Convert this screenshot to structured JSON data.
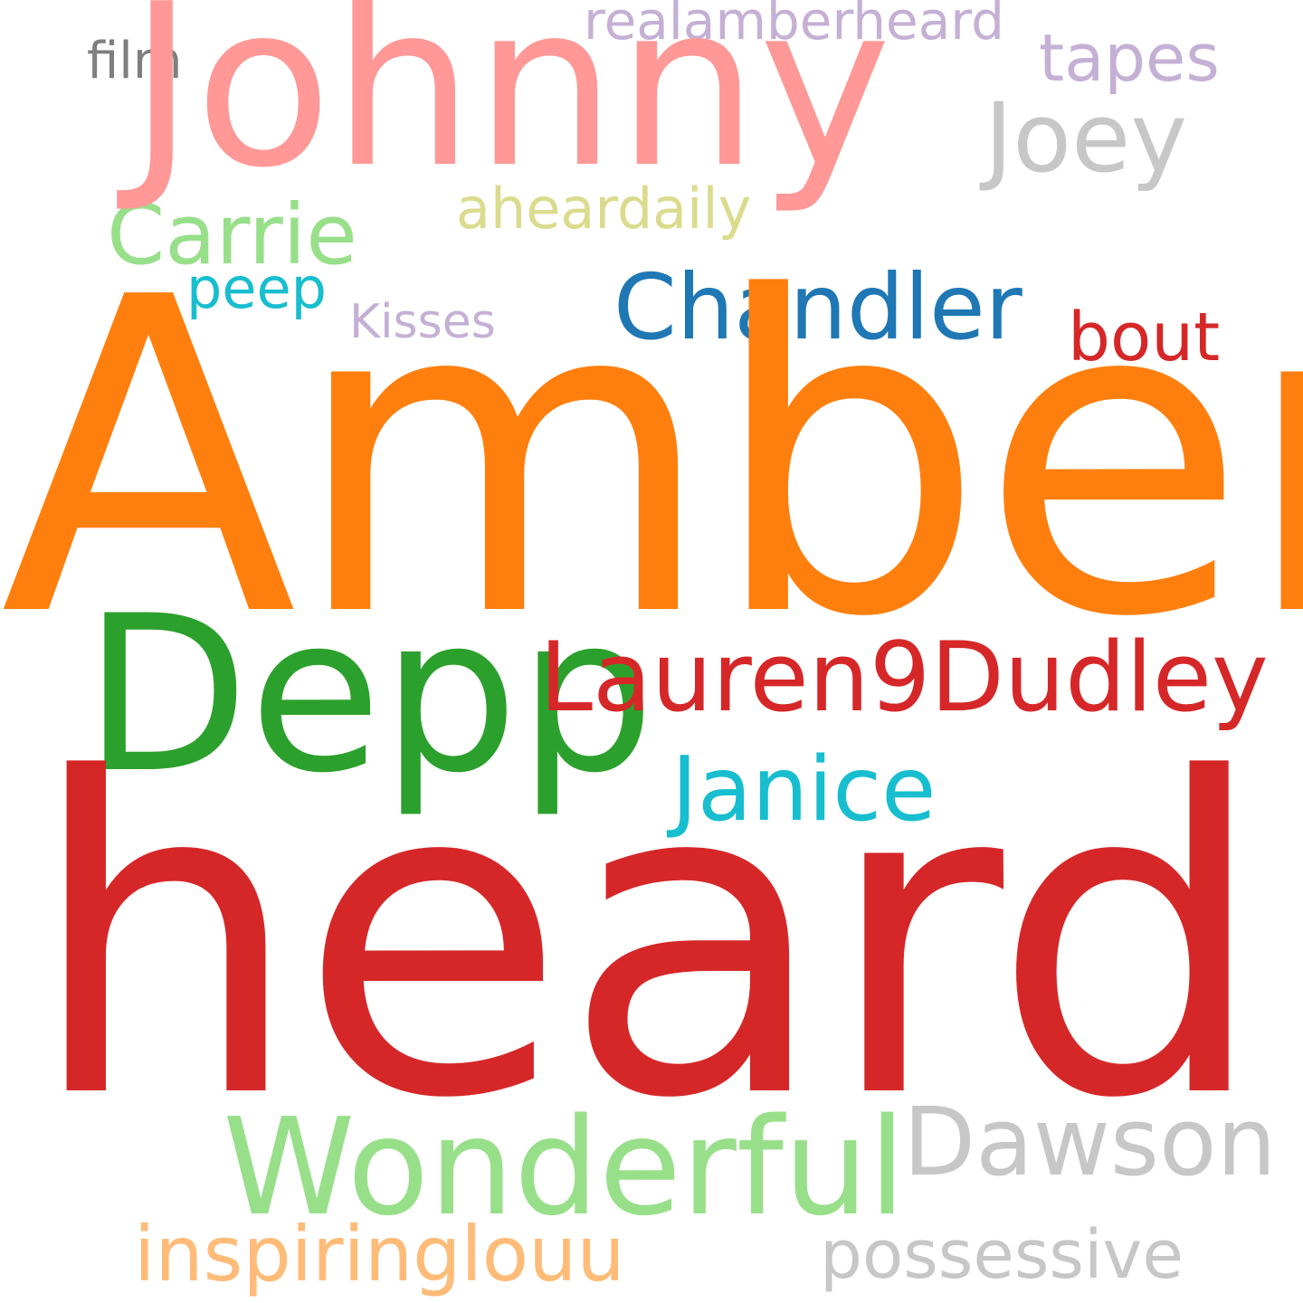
{
  "words": {
    "amber": {
      "text": "Amber",
      "color": "#ff7f0e"
    },
    "heard": {
      "text": "heard",
      "color": "#d62728"
    },
    "johnny": {
      "text": "Johnny",
      "color": "#ff9896"
    },
    "depp": {
      "text": "Depp",
      "color": "#2ca02c"
    },
    "lauren9dudley": {
      "text": "Lauren9Dudley",
      "color": "#d62728"
    },
    "janice": {
      "text": "Janice",
      "color": "#17becf"
    },
    "chandler": {
      "text": "Chandler",
      "color": "#1f77b4"
    },
    "joey": {
      "text": "Joey",
      "color": "#c7c7c7"
    },
    "tapes": {
      "text": "tapes",
      "color": "#c5b0d5"
    },
    "realamberheard": {
      "text": "realamberheard",
      "color": "#c5b0d5"
    },
    "film": {
      "text": "film",
      "color": "#7f7f7f"
    },
    "carrie": {
      "text": "Carrie",
      "color": "#98df8a"
    },
    "aheardaily": {
      "text": "aheardaily",
      "color": "#dbdb8d"
    },
    "peep": {
      "text": "peep",
      "color": "#17becf"
    },
    "kisses": {
      "text": "Kisses",
      "color": "#c5b0d5"
    },
    "bout": {
      "text": "bout",
      "color": "#d62728"
    },
    "wonderful": {
      "text": "Wonderful",
      "color": "#98df8a"
    },
    "dawson": {
      "text": "Dawson",
      "color": "#c7c7c7"
    },
    "inspiringlouu": {
      "text": "inspiringlouu",
      "color": "#ffbb78"
    },
    "possessive": {
      "text": "possessive",
      "color": "#c7c7c7"
    }
  }
}
